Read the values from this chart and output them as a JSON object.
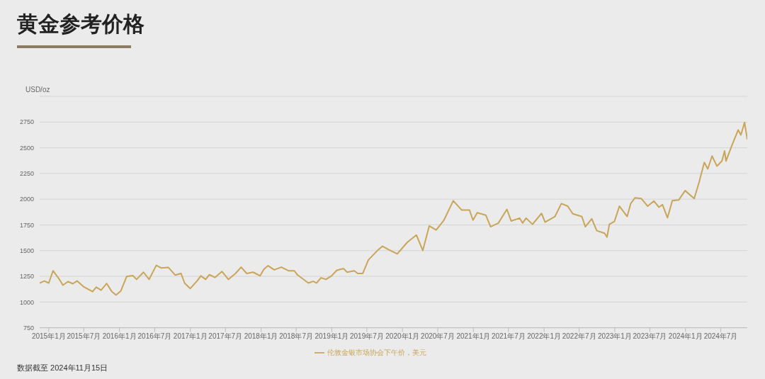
{
  "chart_data": {
    "type": "line",
    "title": "黄金参考价格",
    "ylabel": "USD/oz",
    "annotations": [
      "数据截至 2024年11月15日"
    ],
    "x": [
      "2014-11-15",
      "2014-12-09",
      "2015-01-01",
      "2015-01-23",
      "2015-02-25",
      "2015-03-15",
      "2015-04-10",
      "2015-05-05",
      "2015-05-27",
      "2015-06-29",
      "2015-08-15",
      "2015-09-03",
      "2015-09-28",
      "2015-10-27",
      "2015-11-22",
      "2015-12-14",
      "2016-01-08",
      "2016-02-07",
      "2016-03-10",
      "2016-03-29",
      "2016-05-04",
      "2016-06-02",
      "2016-07-09",
      "2016-08-03",
      "2016-09-09",
      "2016-10-15",
      "2016-11-14",
      "2016-12-02",
      "2016-12-31",
      "2017-02-06",
      "2017-02-24",
      "2017-03-21",
      "2017-04-09",
      "2017-05-08",
      "2017-06-13",
      "2017-07-16",
      "2017-08-22",
      "2017-09-20",
      "2017-10-19",
      "2017-11-21",
      "2017-12-27",
      "2018-01-15",
      "2018-02-06",
      "2018-03-10",
      "2018-04-16",
      "2018-05-22",
      "2018-06-21",
      "2018-07-09",
      "2018-09-02",
      "2018-09-27",
      "2018-10-15",
      "2018-11-06",
      "2018-12-02",
      "2018-12-31",
      "2019-01-26",
      "2019-02-13",
      "2019-03-03",
      "2019-03-21",
      "2019-04-27",
      "2019-05-15",
      "2019-06-10",
      "2019-07-09",
      "2019-08-25",
      "2019-09-20",
      "2019-10-23",
      "2019-12-05",
      "2020-01-26",
      "2020-03-13",
      "2020-04-15",
      "2020-05-18",
      "2020-06-23",
      "2020-08-02",
      "2020-09-19",
      "2020-11-02",
      "2020-12-12",
      "2020-12-30",
      "2021-01-21",
      "2021-03-06",
      "2021-03-31",
      "2021-05-10",
      "2021-06-23",
      "2021-07-15",
      "2021-08-28",
      "2021-09-12",
      "2021-09-30",
      "2021-11-02",
      "2021-12-19",
      "2022-01-06",
      "2022-02-26",
      "2022-03-31",
      "2022-05-03",
      "2022-05-29",
      "2022-07-15",
      "2022-08-02",
      "2022-09-04",
      "2022-09-30",
      "2022-11-09",
      "2022-11-22",
      "2022-12-04",
      "2022-12-30",
      "2023-01-25",
      "2023-03-06",
      "2023-03-24",
      "2023-04-15",
      "2023-05-18",
      "2023-06-20",
      "2023-07-22",
      "2023-08-17",
      "2023-09-04",
      "2023-09-30",
      "2023-10-25",
      "2023-11-27",
      "2023-12-30",
      "2024-02-15",
      "2024-03-12",
      "2024-04-07",
      "2024-04-25",
      "2024-05-17",
      "2024-06-11",
      "2024-07-07",
      "2024-07-21",
      "2024-07-28",
      "2024-08-27",
      "2024-09-29",
      "2024-10-13",
      "2024-11-01",
      "2024-11-15"
    ],
    "series": [
      {
        "name": "伦敦金银市场协会下午价，美元",
        "color": "#c9a55a",
        "values": [
          1185,
          1205,
          1185,
          1304,
          1220,
          1164,
          1199,
          1178,
          1205,
          1150,
          1101,
          1145,
          1115,
          1180,
          1103,
          1068,
          1108,
          1248,
          1257,
          1220,
          1290,
          1220,
          1356,
          1332,
          1337,
          1262,
          1278,
          1185,
          1131,
          1208,
          1255,
          1220,
          1266,
          1239,
          1297,
          1220,
          1278,
          1339,
          1278,
          1290,
          1255,
          1318,
          1353,
          1313,
          1339,
          1304,
          1304,
          1262,
          1185,
          1201,
          1185,
          1236,
          1220,
          1255,
          1307,
          1318,
          1325,
          1290,
          1304,
          1278,
          1278,
          1410,
          1501,
          1543,
          1508,
          1468,
          1581,
          1651,
          1501,
          1740,
          1700,
          1796,
          1985,
          1894,
          1894,
          1796,
          1869,
          1845,
          1732,
          1768,
          1901,
          1788,
          1816,
          1768,
          1816,
          1756,
          1862,
          1777,
          1831,
          1957,
          1932,
          1858,
          1831,
          1732,
          1810,
          1694,
          1669,
          1631,
          1756,
          1783,
          1932,
          1831,
          1957,
          2013,
          2006,
          1932,
          1982,
          1922,
          1947,
          1819,
          1985,
          1992,
          2083,
          2006,
          2170,
          2357,
          2294,
          2420,
          2322,
          2371,
          2469,
          2371,
          2521,
          2673,
          2624,
          2746,
          2581
        ]
      }
    ],
    "xlim": [
      "2014-11-15",
      "2024-11-15"
    ],
    "xticks": [
      {
        "value": "2015-01",
        "label": "2015年1月"
      },
      {
        "value": "2015-07",
        "label": "2015年7月"
      },
      {
        "value": "2016-01",
        "label": "2016年1月"
      },
      {
        "value": "2016-07",
        "label": "2016年7月"
      },
      {
        "value": "2017-01",
        "label": "2017年1月"
      },
      {
        "value": "2017-07",
        "label": "2017年7月"
      },
      {
        "value": "2018-01",
        "label": "2018年1月"
      },
      {
        "value": "2018-07",
        "label": "2018年7月"
      },
      {
        "value": "2019-01",
        "label": "2019年1月"
      },
      {
        "value": "2019-07",
        "label": "2019年7月"
      },
      {
        "value": "2020-01",
        "label": "2020年1月"
      },
      {
        "value": "2020-07",
        "label": "2020年7月"
      },
      {
        "value": "2021-01",
        "label": "2021年1月"
      },
      {
        "value": "2021-07",
        "label": "2021年7月"
      },
      {
        "value": "2022-01",
        "label": "2022年1月"
      },
      {
        "value": "2022-07",
        "label": "2022年7月"
      },
      {
        "value": "2023-01",
        "label": "2023年1月"
      },
      {
        "value": "2023-07",
        "label": "2023年7月"
      },
      {
        "value": "2024-01",
        "label": "2024年1月"
      },
      {
        "value": "2024-07",
        "label": "2024年7月"
      }
    ],
    "ylim": [
      750,
      3000
    ],
    "yticks": [
      750,
      1000,
      1250,
      1500,
      1750,
      2000,
      2250,
      2500,
      2750,
      {
        "value": 3000,
        "label": null
      }
    ],
    "grid": "y",
    "legend": "bottom",
    "marker": "none",
    "line_style": "solid"
  }
}
